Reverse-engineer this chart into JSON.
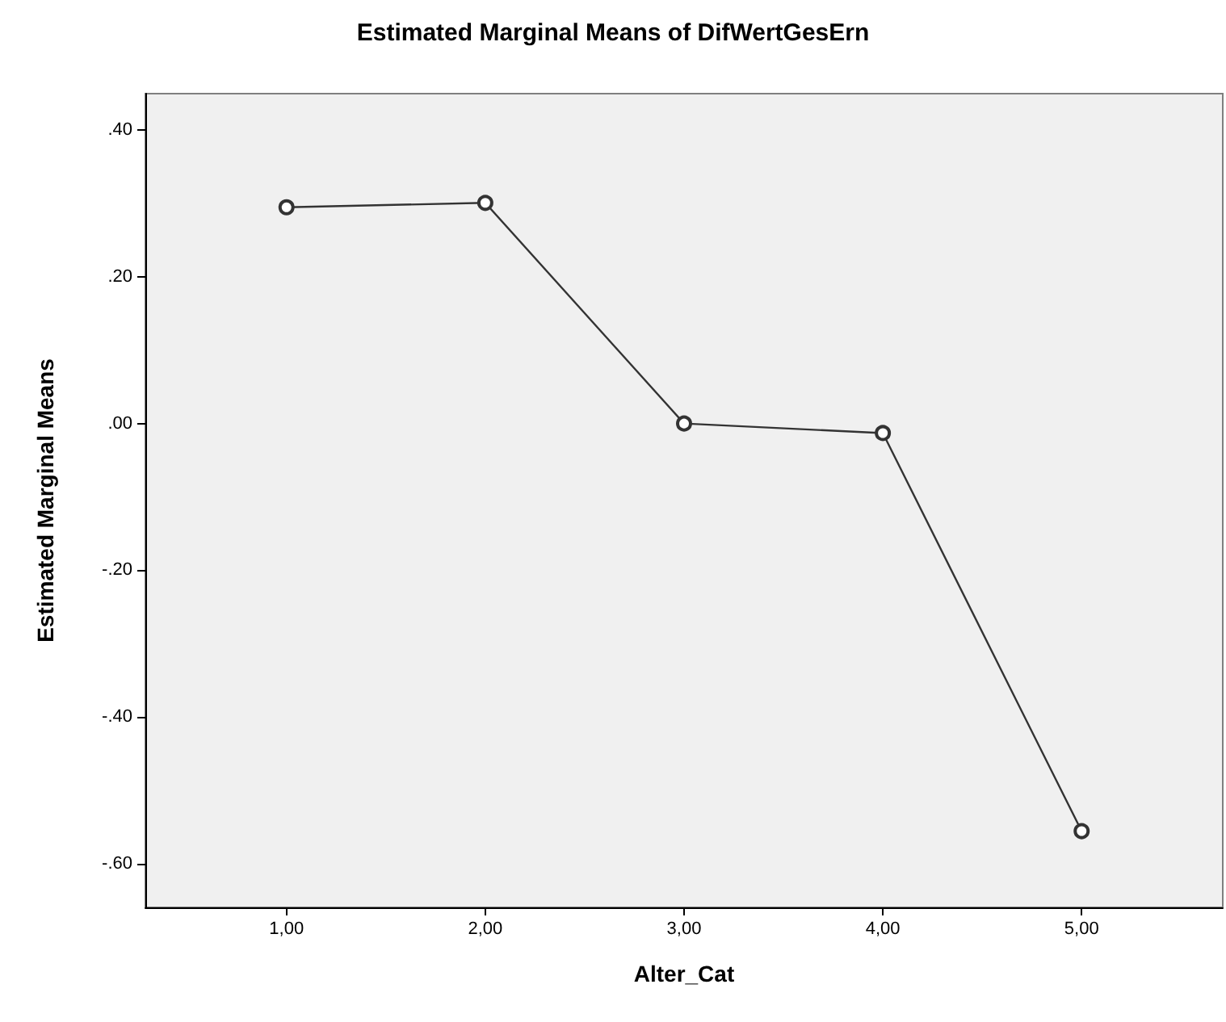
{
  "chart_data": {
    "type": "line",
    "title": "Estimated Marginal Means of DifWertGesErn",
    "xlabel": "Alter_Cat",
    "ylabel": "Estimated Marginal Means",
    "x": [
      1,
      2,
      3,
      4,
      5
    ],
    "series": [
      {
        "color": "#333333",
        "values": [
          0.295,
          0.301,
          0.0,
          -0.013,
          -0.556
        ]
      }
    ],
    "xlim": [
      0.29,
      5.71
    ],
    "ylim": [
      -0.66,
      0.45
    ],
    "xticks": [
      {
        "value": 1,
        "label": "1,00"
      },
      {
        "value": 2,
        "label": "2,00"
      },
      {
        "value": 3,
        "label": "3,00"
      },
      {
        "value": 4,
        "label": "4,00"
      },
      {
        "value": 5,
        "label": "5,00"
      }
    ],
    "yticks": [
      {
        "value": -0.6,
        "label": "-.60"
      },
      {
        "value": -0.4,
        "label": "-.40"
      },
      {
        "value": -0.2,
        "label": "-.20"
      },
      {
        "value": 0,
        "label": ".00"
      },
      {
        "value": 0.2,
        "label": ".20"
      },
      {
        "value": 0.4,
        "label": ".40"
      }
    ],
    "grid": false,
    "marker": "circle",
    "line_style": "solid"
  }
}
